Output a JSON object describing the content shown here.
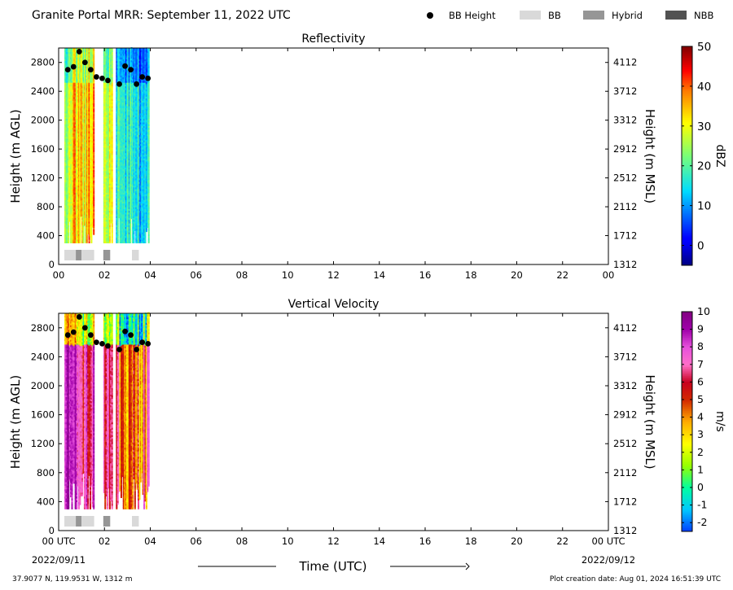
{
  "header": {
    "title": "Granite Portal MRR:  September 11, 2022 UTC",
    "legend": [
      {
        "label": "BB Height",
        "color": "#000000",
        "kind": "dot"
      },
      {
        "label": "BB",
        "color": "#d9d9d9",
        "kind": "box"
      },
      {
        "label": "Hybrid",
        "color": "#969696",
        "kind": "box"
      },
      {
        "label": "NBB",
        "color": "#525252",
        "kind": "box"
      }
    ]
  },
  "footer": {
    "location": "37.9077 N, 119.9531 W, 1312 m",
    "creation": "Plot creation date: Aug 01, 2024 16:51:39 UTC",
    "xlabel": "Time (UTC)",
    "date_start": "2022/09/11",
    "date_end": "2022/09/12"
  },
  "chart_data": [
    {
      "type": "heatmap",
      "title": "Reflectivity",
      "ylabel": "Height (m AGL)",
      "ylabel_right": "Height (m MSL)",
      "xlim": [
        0,
        24
      ],
      "ylim": [
        0,
        3000
      ],
      "x_ticks": [
        "00",
        "02",
        "04",
        "06",
        "08",
        "10",
        "12",
        "14",
        "16",
        "18",
        "20",
        "22",
        "00"
      ],
      "y_ticks": [
        "0",
        "400",
        "800",
        "1200",
        "1600",
        "2000",
        "2400",
        "2800"
      ],
      "y_ticks_right": [
        "1312",
        "1712",
        "2112",
        "2512",
        "2912",
        "3312",
        "3712",
        "4112"
      ],
      "colorbar": {
        "label": "dBZ",
        "range": [
          -5,
          50
        ],
        "ticks": [
          "0",
          "10",
          "20",
          "30",
          "40",
          "50"
        ]
      },
      "bb_heights": [
        {
          "t": 0.4,
          "h": 2700
        },
        {
          "t": 0.65,
          "h": 2740
        },
        {
          "t": 0.9,
          "h": 2950
        },
        {
          "t": 1.15,
          "h": 2800
        },
        {
          "t": 1.4,
          "h": 2700
        },
        {
          "t": 1.65,
          "h": 2600
        },
        {
          "t": 1.9,
          "h": 2580
        },
        {
          "t": 2.15,
          "h": 2550
        },
        {
          "t": 2.65,
          "h": 2500
        },
        {
          "t": 2.9,
          "h": 2750
        },
        {
          "t": 3.15,
          "h": 2700
        },
        {
          "t": 3.4,
          "h": 2500
        },
        {
          "t": 3.65,
          "h": 2600
        },
        {
          "t": 3.9,
          "h": 2580
        }
      ],
      "bb_type_segments": [
        {
          "start": 0.25,
          "end": 0.75,
          "type": "BB"
        },
        {
          "start": 0.75,
          "end": 1.0,
          "type": "Hybrid"
        },
        {
          "start": 1.0,
          "end": 1.55,
          "type": "BB"
        },
        {
          "start": 1.95,
          "end": 2.25,
          "type": "Hybrid"
        },
        {
          "start": 3.2,
          "end": 3.5,
          "type": "BB"
        }
      ]
    },
    {
      "type": "heatmap",
      "title": "Vertical Velocity",
      "ylabel": "Height (m AGL)",
      "ylabel_right": "Height (m MSL)",
      "xlim": [
        0,
        24
      ],
      "ylim": [
        0,
        3000
      ],
      "x_ticks": [
        "00 UTC",
        "02",
        "04",
        "06",
        "08",
        "10",
        "12",
        "14",
        "16",
        "18",
        "20",
        "22",
        "00 UTC"
      ],
      "y_ticks": [
        "0",
        "400",
        "800",
        "1200",
        "1600",
        "2000",
        "2400",
        "2800"
      ],
      "y_ticks_right": [
        "1312",
        "1712",
        "2112",
        "2512",
        "2912",
        "3312",
        "3712",
        "4112"
      ],
      "colorbar": {
        "label": "m/s",
        "range": [
          -2.5,
          10
        ],
        "ticks": [
          "-2",
          "-1",
          "0",
          "1",
          "2",
          "3",
          "4",
          "5",
          "6",
          "7",
          "8",
          "9",
          "10"
        ]
      },
      "bb_heights": [
        {
          "t": 0.4,
          "h": 2700
        },
        {
          "t": 0.65,
          "h": 2740
        },
        {
          "t": 0.9,
          "h": 2950
        },
        {
          "t": 1.15,
          "h": 2800
        },
        {
          "t": 1.4,
          "h": 2700
        },
        {
          "t": 1.65,
          "h": 2600
        },
        {
          "t": 1.9,
          "h": 2580
        },
        {
          "t": 2.15,
          "h": 2550
        },
        {
          "t": 2.65,
          "h": 2500
        },
        {
          "t": 2.9,
          "h": 2750
        },
        {
          "t": 3.15,
          "h": 2700
        },
        {
          "t": 3.4,
          "h": 2500
        },
        {
          "t": 3.65,
          "h": 2600
        },
        {
          "t": 3.9,
          "h": 2580
        }
      ],
      "bb_type_segments": [
        {
          "start": 0.25,
          "end": 0.75,
          "type": "BB"
        },
        {
          "start": 0.75,
          "end": 1.0,
          "type": "Hybrid"
        },
        {
          "start": 1.0,
          "end": 1.55,
          "type": "BB"
        },
        {
          "start": 1.95,
          "end": 2.25,
          "type": "Hybrid"
        },
        {
          "start": 3.2,
          "end": 3.5,
          "type": "BB"
        }
      ]
    }
  ]
}
